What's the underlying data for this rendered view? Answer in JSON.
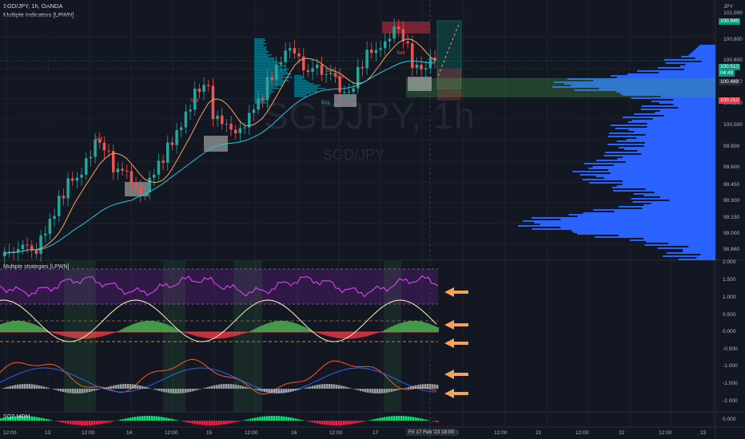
{
  "header": {
    "symbol_line": "SGD/JPY, 1h, OANDA",
    "indicator_line": "Multiple Indicators [LPWN]"
  },
  "watermark": {
    "ticker": "SGDJPY, 1h",
    "pair": "SGD/JPY"
  },
  "lower_panels": {
    "strategies_label": "Multiple strategies [LPWN]",
    "squeeze_label": "SQZ MOM"
  },
  "price_axis": {
    "currency": "JPY",
    "labels": [
      "101.000",
      "100.800",
      "100.600",
      "100.400",
      "100.200",
      "100.000",
      "99.800",
      "99.600",
      "99.450",
      "99.300",
      "99.150",
      "99.000",
      "98.860"
    ],
    "tags": {
      "target": "100.949",
      "last": "100.513",
      "countdown": "04:49",
      "entry": "100.489",
      "stop": "100.212"
    },
    "colors": {
      "target": "#089981",
      "last": "#089981",
      "entry": "#2a2e39",
      "stop": "#f23645"
    }
  },
  "oscillator_axis": {
    "labels": [
      "2.000",
      "1.500",
      "1.000",
      "0.500",
      "0.000",
      "-0.500",
      "-1.000",
      "-1.500",
      "-2.000"
    ],
    "sqz_label": "0.000"
  },
  "time_axis": {
    "labels": [
      "12:00",
      "13",
      "12:00",
      "14",
      "12:00",
      "15",
      "12:00",
      "16",
      "12:00",
      "17",
      "12:00",
      "20",
      "12:00",
      "21",
      "12:00",
      "22",
      "12:00",
      "23"
    ],
    "cursor": "Fri 17 Feb '23 18:00"
  },
  "chart_data": {
    "type": "candlestick",
    "symbol": "SGD/JPY",
    "interval": "1h",
    "ylim": [
      98.86,
      101.0
    ],
    "close_approx": [
      98.9,
      98.92,
      98.95,
      98.88,
      99.05,
      99.2,
      99.35,
      99.5,
      99.55,
      99.7,
      99.82,
      99.75,
      99.6,
      99.58,
      99.45,
      99.4,
      99.55,
      99.65,
      99.8,
      99.95,
      100.1,
      100.25,
      100.3,
      100.05,
      99.98,
      99.9,
      99.95,
      100.1,
      100.18,
      100.35,
      100.5,
      100.62,
      100.55,
      100.42,
      100.48,
      100.4,
      100.38,
      100.25,
      100.28,
      100.45,
      100.58,
      100.62,
      100.7,
      100.78,
      100.66,
      100.48,
      100.45,
      100.51
    ],
    "levels": {
      "target": 100.949,
      "last": 100.513,
      "entry": 100.489,
      "stop": 100.212
    },
    "signals": [
      "Sell",
      "Sell",
      "Sell",
      "Sell",
      "Sell",
      "Buy"
    ],
    "colors": {
      "up": "#26a69a",
      "down": "#ef5350",
      "ma_fast": "#f7a35c",
      "ma_slow": "#26c6da",
      "volume_profile": "#2962ff"
    }
  },
  "colors": {
    "background": "#131722",
    "grid": "#1e222d",
    "magenta_line": "#e040fb",
    "arrow": "#f5a25d"
  }
}
